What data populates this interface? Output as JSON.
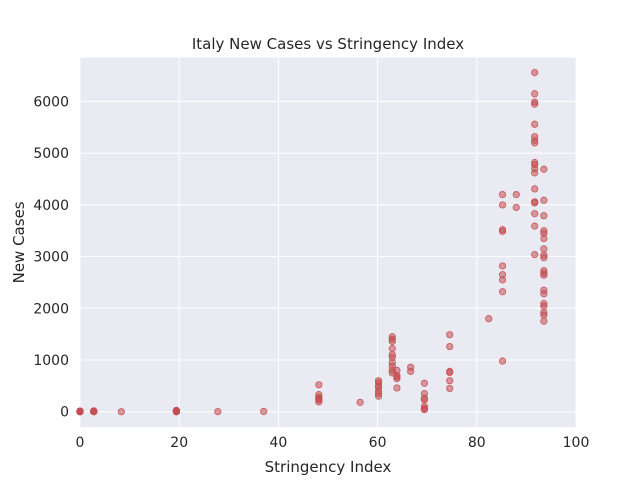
{
  "chart_data": {
    "type": "scatter",
    "title": "Italy New Cases vs Stringency Index",
    "xlabel": "Stringency Index",
    "ylabel": "New Cases",
    "xlim": [
      0,
      100
    ],
    "ylim": [
      -300,
      6850
    ],
    "xticks": [
      0,
      20,
      40,
      60,
      80,
      100
    ],
    "yticks": [
      0,
      1000,
      2000,
      3000,
      4000,
      5000,
      6000
    ],
    "grid": true,
    "background": "#eaeaf2",
    "gridColor": "#ffffff",
    "markerColor": "#c44e52",
    "points": [
      [
        0,
        0
      ],
      [
        0,
        3
      ],
      [
        0,
        5
      ],
      [
        0,
        2
      ],
      [
        0,
        14
      ],
      [
        0,
        1
      ],
      [
        0,
        0
      ],
      [
        0,
        4
      ],
      [
        0,
        8
      ],
      [
        0,
        0
      ],
      [
        2.78,
        0
      ],
      [
        2.78,
        3
      ],
      [
        2.78,
        17
      ],
      [
        2.78,
        6
      ],
      [
        2.78,
        1
      ],
      [
        8.33,
        0
      ],
      [
        19.44,
        0
      ],
      [
        19.44,
        3
      ],
      [
        19.44,
        10
      ],
      [
        19.44,
        14
      ],
      [
        19.44,
        5
      ],
      [
        19.44,
        8
      ],
      [
        19.44,
        25
      ],
      [
        19.44,
        2
      ],
      [
        19.44,
        18
      ],
      [
        19.44,
        12
      ],
      [
        19.44,
        7
      ],
      [
        27.78,
        2
      ],
      [
        37.04,
        5
      ],
      [
        48.15,
        520
      ],
      [
        48.15,
        330
      ],
      [
        48.15,
        280
      ],
      [
        48.15,
        250
      ],
      [
        48.15,
        230
      ],
      [
        48.15,
        190
      ],
      [
        56.48,
        180
      ],
      [
        60.19,
        600
      ],
      [
        60.19,
        560
      ],
      [
        60.19,
        500
      ],
      [
        60.19,
        470
      ],
      [
        60.19,
        400
      ],
      [
        60.19,
        350
      ],
      [
        60.19,
        300
      ],
      [
        62.96,
        1450
      ],
      [
        62.96,
        1400
      ],
      [
        62.96,
        1360
      ],
      [
        62.96,
        1220
      ],
      [
        62.96,
        1100
      ],
      [
        62.96,
        1050
      ],
      [
        62.96,
        950
      ],
      [
        62.96,
        880
      ],
      [
        62.96,
        800
      ],
      [
        62.96,
        750
      ],
      [
        63.89,
        800
      ],
      [
        63.89,
        700
      ],
      [
        63.89,
        670
      ],
      [
        63.89,
        640
      ],
      [
        63.89,
        460
      ],
      [
        66.67,
        860
      ],
      [
        66.67,
        780
      ],
      [
        69.44,
        550
      ],
      [
        69.44,
        350
      ],
      [
        69.44,
        260
      ],
      [
        69.44,
        230
      ],
      [
        69.44,
        100
      ],
      [
        69.44,
        60
      ],
      [
        69.44,
        40
      ],
      [
        74.54,
        1490
      ],
      [
        74.54,
        1260
      ],
      [
        74.54,
        780
      ],
      [
        74.54,
        760
      ],
      [
        74.54,
        600
      ],
      [
        74.54,
        450
      ],
      [
        82.41,
        1800
      ],
      [
        85.19,
        4200
      ],
      [
        85.19,
        4000
      ],
      [
        85.19,
        3520
      ],
      [
        85.19,
        3490
      ],
      [
        85.19,
        2820
      ],
      [
        85.19,
        2650
      ],
      [
        85.19,
        2550
      ],
      [
        85.19,
        2320
      ],
      [
        85.19,
        980
      ],
      [
        87.96,
        4200
      ],
      [
        87.96,
        3950
      ],
      [
        91.67,
        6560
      ],
      [
        91.67,
        6150
      ],
      [
        91.67,
        5990
      ],
      [
        91.67,
        5950
      ],
      [
        91.67,
        5560
      ],
      [
        91.67,
        5320
      ],
      [
        91.67,
        5250
      ],
      [
        91.67,
        5200
      ],
      [
        91.67,
        4820
      ],
      [
        91.67,
        4780
      ],
      [
        91.67,
        4700
      ],
      [
        91.67,
        4620
      ],
      [
        91.67,
        4310
      ],
      [
        91.67,
        4060
      ],
      [
        91.67,
        4040
      ],
      [
        91.67,
        3830
      ],
      [
        91.67,
        3590
      ],
      [
        91.67,
        3040
      ],
      [
        93.52,
        4690
      ],
      [
        93.52,
        4090
      ],
      [
        93.52,
        3790
      ],
      [
        93.52,
        3500
      ],
      [
        93.52,
        3450
      ],
      [
        93.52,
        3350
      ],
      [
        93.52,
        3150
      ],
      [
        93.52,
        3030
      ],
      [
        93.52,
        2980
      ],
      [
        93.52,
        2730
      ],
      [
        93.52,
        2680
      ],
      [
        93.52,
        2640
      ],
      [
        93.52,
        2350
      ],
      [
        93.52,
        2280
      ],
      [
        93.52,
        2090
      ],
      [
        93.52,
        2040
      ],
      [
        93.52,
        1920
      ],
      [
        93.52,
        1870
      ],
      [
        93.52,
        1750
      ]
    ]
  }
}
